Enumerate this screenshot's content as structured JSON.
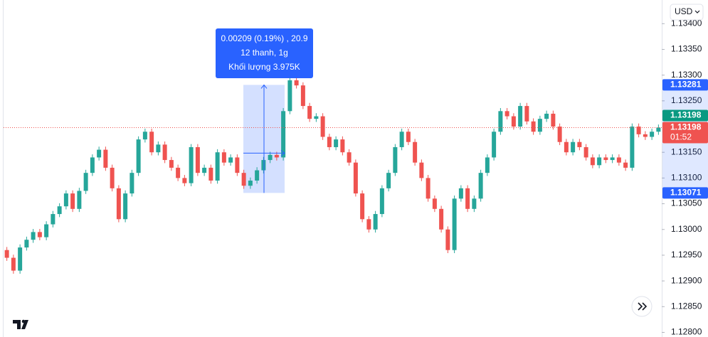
{
  "chart_data": {
    "type": "candlestick",
    "currency": "USD",
    "up_color": "#26a69a",
    "down_color": "#ef5350",
    "ylim": [
      1.12791,
      1.13446
    ],
    "yticks": [
      {
        "value": 1.134,
        "label": "1.13400"
      },
      {
        "value": 1.1335,
        "label": "1.13350"
      },
      {
        "value": 1.133,
        "label": "1.13300"
      },
      {
        "value": 1.1325,
        "label": "1.13250"
      },
      {
        "value": 1.1315,
        "label": "1.13150"
      },
      {
        "value": 1.131,
        "label": "1.13100"
      },
      {
        "value": 1.1305,
        "label": "1.13050"
      },
      {
        "value": 1.13,
        "label": "1.13000"
      },
      {
        "value": 1.1295,
        "label": "1.12950"
      },
      {
        "value": 1.129,
        "label": "1.12900"
      },
      {
        "value": 1.1285,
        "label": "1.12850"
      },
      {
        "value": 1.128,
        "label": "1.12800"
      }
    ],
    "open": [
      1.1296,
      1.12945,
      1.1292,
      1.12965,
      1.1298,
      1.12995,
      1.12985,
      1.1301,
      1.1303,
      1.13045,
      1.1307,
      1.1304,
      1.13075,
      1.1311,
      1.1314,
      1.13155,
      1.1312,
      1.1308,
      1.1302,
      1.1307,
      1.1311,
      1.13175,
      1.1319,
      1.1315,
      1.13165,
      1.13135,
      1.1312,
      1.131,
      1.1309,
      1.1316,
      1.1311,
      1.1312,
      1.13095,
      1.1315,
      1.1313,
      1.1314,
      1.1311,
      1.13085,
      1.13095,
      1.13115,
      1.13135,
      1.13145,
      1.1314,
      1.1323,
      1.1329,
      1.1328,
      1.1324,
      1.13215,
      1.1322,
      1.1318,
      1.1316,
      1.13175,
      1.1315,
      1.1313,
      1.1307,
      1.1302,
      1.13,
      1.1303,
      1.1308,
      1.1311,
      1.1316,
      1.1319,
      1.1317,
      1.1313,
      1.131,
      1.1306,
      1.1304,
      1.13,
      1.1296,
      1.1306,
      1.1308,
      1.1304,
      1.1306,
      1.1311,
      1.1314,
      1.1319,
      1.1323,
      1.1322,
      1.132,
      1.1324,
      1.1321,
      1.1319,
      1.13215,
      1.13225,
      1.132,
      1.1317,
      1.1315,
      1.1317,
      1.1316,
      1.1314,
      1.13125,
      1.1314,
      1.13135,
      1.1314,
      1.1313,
      1.1312,
      1.132,
      1.13185,
      1.1318,
      1.1319
    ],
    "high": [
      1.12966,
      1.12951,
      1.12971,
      1.12986,
      1.13001,
      1.13001,
      1.13016,
      1.13036,
      1.13051,
      1.13076,
      1.13076,
      1.13081,
      1.13116,
      1.13146,
      1.13161,
      1.13161,
      1.13126,
      1.13086,
      1.13076,
      1.13116,
      1.13181,
      1.13196,
      1.13196,
      1.13171,
      1.13171,
      1.13141,
      1.13126,
      1.13106,
      1.13166,
      1.13166,
      1.13126,
      1.13126,
      1.13156,
      1.13156,
      1.13146,
      1.13146,
      1.13116,
      1.13101,
      1.13121,
      1.13141,
      1.13151,
      1.13151,
      1.13236,
      1.13296,
      1.13296,
      1.13286,
      1.13246,
      1.13226,
      1.13226,
      1.13186,
      1.13181,
      1.13181,
      1.13156,
      1.13136,
      1.13076,
      1.13026,
      1.13036,
      1.13086,
      1.13116,
      1.13166,
      1.13196,
      1.13196,
      1.13176,
      1.13136,
      1.13106,
      1.13066,
      1.13046,
      1.13006,
      1.13066,
      1.13086,
      1.13086,
      1.13066,
      1.13116,
      1.13146,
      1.13196,
      1.13236,
      1.13236,
      1.13226,
      1.13246,
      1.13246,
      1.13216,
      1.13221,
      1.13231,
      1.13231,
      1.13206,
      1.13176,
      1.13176,
      1.13176,
      1.13166,
      1.13146,
      1.13146,
      1.13146,
      1.13146,
      1.13146,
      1.13136,
      1.13206,
      1.13206,
      1.13191,
      1.13196,
      1.13204
    ],
    "low": [
      1.12939,
      1.12914,
      1.12914,
      1.12959,
      1.12974,
      1.12979,
      1.12979,
      1.13004,
      1.13024,
      1.13039,
      1.13034,
      1.13034,
      1.13069,
      1.13104,
      1.13134,
      1.13114,
      1.13074,
      1.13014,
      1.13014,
      1.13064,
      1.13104,
      1.13169,
      1.13144,
      1.13144,
      1.13129,
      1.13114,
      1.13094,
      1.13084,
      1.13084,
      1.13104,
      1.13104,
      1.13089,
      1.13089,
      1.13124,
      1.13124,
      1.13104,
      1.13079,
      1.13079,
      1.13089,
      1.13109,
      1.13129,
      1.13134,
      1.13134,
      1.13224,
      1.13274,
      1.13234,
      1.13209,
      1.13209,
      1.13174,
      1.13154,
      1.13154,
      1.13144,
      1.13124,
      1.13064,
      1.13014,
      1.12994,
      1.12994,
      1.13024,
      1.13074,
      1.13104,
      1.13154,
      1.13164,
      1.13124,
      1.13094,
      1.13054,
      1.13034,
      1.12994,
      1.12954,
      1.12954,
      1.13054,
      1.13034,
      1.13034,
      1.13054,
      1.13104,
      1.13134,
      1.13184,
      1.13214,
      1.13194,
      1.13194,
      1.13204,
      1.13184,
      1.13184,
      1.13209,
      1.13194,
      1.13164,
      1.13144,
      1.13144,
      1.13154,
      1.13134,
      1.13119,
      1.13119,
      1.13129,
      1.13129,
      1.13124,
      1.13114,
      1.13114,
      1.13179,
      1.13174,
      1.13174,
      1.13184
    ],
    "close": [
      1.12945,
      1.1292,
      1.12965,
      1.1298,
      1.12995,
      1.12985,
      1.1301,
      1.1303,
      1.13045,
      1.1307,
      1.1304,
      1.13075,
      1.1311,
      1.1314,
      1.13155,
      1.1312,
      1.1308,
      1.1302,
      1.1307,
      1.1311,
      1.13175,
      1.1319,
      1.1315,
      1.13165,
      1.13135,
      1.1312,
      1.131,
      1.1309,
      1.1316,
      1.1311,
      1.1312,
      1.13095,
      1.1315,
      1.1313,
      1.1314,
      1.1311,
      1.13085,
      1.13095,
      1.13115,
      1.13135,
      1.13145,
      1.1314,
      1.1323,
      1.1329,
      1.1328,
      1.1324,
      1.13215,
      1.1322,
      1.1318,
      1.1316,
      1.13175,
      1.1315,
      1.1313,
      1.1307,
      1.1302,
      1.13,
      1.1303,
      1.1308,
      1.1311,
      1.1316,
      1.1319,
      1.1317,
      1.1313,
      1.131,
      1.1306,
      1.1304,
      1.13,
      1.1296,
      1.1306,
      1.1308,
      1.1304,
      1.1306,
      1.1311,
      1.1314,
      1.1319,
      1.1323,
      1.1322,
      1.132,
      1.1324,
      1.1321,
      1.1319,
      1.13215,
      1.13225,
      1.132,
      1.1317,
      1.1315,
      1.1317,
      1.1316,
      1.1314,
      1.13125,
      1.1314,
      1.13135,
      1.1314,
      1.1313,
      1.1312,
      1.132,
      1.13185,
      1.1318,
      1.1319,
      1.13198
    ],
    "last_price": 1.13198,
    "countdown": "01:52",
    "bid_price": 1.13198,
    "measure": {
      "high": 1.13281,
      "low": 1.13071,
      "tooltip": [
        "0.00209 (0.19%) , 20.9",
        "12 thanh, 1g",
        "Khối lượng 3.975K"
      ]
    }
  }
}
